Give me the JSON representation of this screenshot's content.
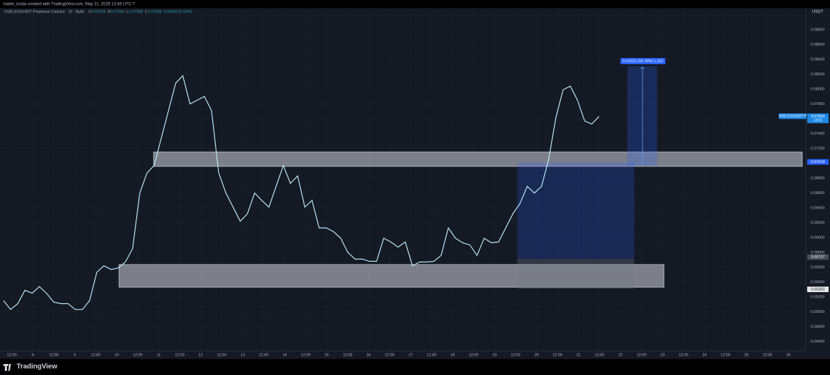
{
  "header": {
    "attribution": "trader_koala created with TradingView.com, May 21, 2026 13:45 UTC-7",
    "symbol": "USELESSUSDT Perpetual Contract · 1h · Bybit",
    "ohlc": [
      "O",
      "0.07634",
      "H",
      "0.07660",
      "L",
      "0.07558",
      "C",
      "0.07634",
      "0.00000 (0.00%)"
    ],
    "currency": "USDT"
  },
  "footer": {
    "brand": "TradingView"
  },
  "measure_label": "0.01312 (18.79%) 1,312",
  "chart_data": {
    "type": "line",
    "color": "#b9eef5",
    "values": [
      0.0515,
      0.0503,
      0.0511,
      0.0529,
      0.0525,
      0.0534,
      0.0525,
      0.0513,
      0.0511,
      0.0511,
      0.0503,
      0.0503,
      0.0515,
      0.0553,
      0.0562,
      0.0557,
      0.0559,
      0.0567,
      0.0585,
      0.066,
      0.0687,
      0.0697,
      0.0734,
      0.0771,
      0.0808,
      0.0818,
      0.078,
      0.0785,
      0.079,
      0.0771,
      0.0687,
      0.066,
      0.0641,
      0.0622,
      0.0632,
      0.066,
      0.065,
      0.0641,
      0.0669,
      0.0697,
      0.0673,
      0.0683,
      0.0641,
      0.065,
      0.0613,
      0.0613,
      0.0608,
      0.0599,
      0.058,
      0.0571,
      0.0571,
      0.0568,
      0.0568,
      0.0599,
      0.0594,
      0.0587,
      0.0594,
      0.0562,
      0.0567,
      0.0567,
      0.0568,
      0.0576,
      0.0613,
      0.0599,
      0.0593,
      0.059,
      0.0576,
      0.0599,
      0.0593,
      0.0594,
      0.0613,
      0.0632,
      0.0646,
      0.0669,
      0.066,
      0.0669,
      0.0706,
      0.0762,
      0.0799,
      0.0804,
      0.0785,
      0.0757,
      0.0753,
      0.0763
    ],
    "ylim": [
      0.04474,
      0.09088
    ],
    "yticks": [
      {
        "value": 0.046,
        "label": "0.04600"
      },
      {
        "value": 0.048,
        "label": "0.04800"
      },
      {
        "value": 0.05,
        "label": "0.05000"
      },
      {
        "value": 0.052,
        "label": "0.05200"
      },
      {
        "value": 0.054,
        "label": "0.05400"
      },
      {
        "value": 0.056,
        "label": "0.05600"
      },
      {
        "value": 0.058,
        "label": "0.05800"
      },
      {
        "value": 0.06,
        "label": "0.06000"
      },
      {
        "value": 0.062,
        "label": "0.06200"
      },
      {
        "value": 0.064,
        "label": "0.06400"
      },
      {
        "value": 0.066,
        "label": "0.06600"
      },
      {
        "value": 0.068,
        "label": "0.06800"
      },
      {
        "value": 0.07,
        "label": "0.07000"
      },
      {
        "value": 0.072,
        "label": "0.07200"
      },
      {
        "value": 0.074,
        "label": "0.07400"
      },
      {
        "value": 0.076,
        "label": "0.07600"
      },
      {
        "value": 0.078,
        "label": "0.07800"
      },
      {
        "value": 0.08,
        "label": "0.08000"
      },
      {
        "value": 0.082,
        "label": "0.08200"
      },
      {
        "value": 0.084,
        "label": "0.08400"
      },
      {
        "value": 0.086,
        "label": "0.08600"
      },
      {
        "value": 0.088,
        "label": "0.08800"
      }
    ],
    "xtick_labels": [
      "12:00",
      "8",
      "12:00",
      "9",
      "12:00",
      "10",
      "12:00",
      "11",
      "12:00",
      "12",
      "12:00",
      "13",
      "12:00",
      "14",
      "12:00",
      "15",
      "12:00",
      "16",
      "12:00",
      "17",
      "12:00",
      "18",
      "12:00",
      "19",
      "12:00",
      "20",
      "12:00",
      "21",
      "12:00",
      "22",
      "12:00",
      "23",
      "12:00",
      "24",
      "12:00",
      "25",
      "12:00",
      "26"
    ],
    "grid": true,
    "price_labels": [
      {
        "value": 0.07019,
        "label": "0.07019",
        "color": "#2962ff"
      },
      {
        "value": 0.05737,
        "label": "0.05737",
        "color": "#4a4e58"
      },
      {
        "value": 0.05302,
        "label": "0.05302",
        "color": "#e6e6e6"
      },
      {
        "value": 0.07634,
        "label": "0.07634",
        "color": "#1e88e5"
      }
    ],
    "current_symbol": "USELESSUSDT.P",
    "countdown": "13:51"
  }
}
